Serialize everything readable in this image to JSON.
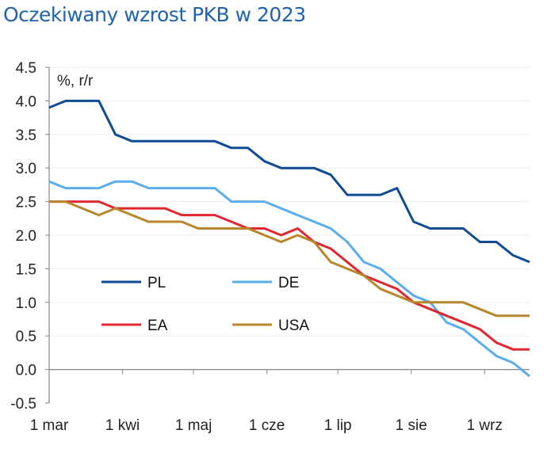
{
  "chart_data": {
    "type": "line",
    "title": "Oczekiwany wzrost PKB w 2023",
    "ylabel": "%, r/r",
    "xlabel": "",
    "ylim": [
      -0.5,
      4.5
    ],
    "yticks": [
      "4.5",
      "4.0",
      "3.5",
      "3.0",
      "2.5",
      "2.0",
      "1.5",
      "1.0",
      "0.5",
      "0.0",
      "-0.5"
    ],
    "xticks": [
      {
        "label": "1 mar",
        "date": "2023-03-01"
      },
      {
        "label": "1 kwi",
        "date": "2023-04-01"
      },
      {
        "label": "1 maj",
        "date": "2023-05-01"
      },
      {
        "label": "1 cze",
        "date": "2023-06-01"
      },
      {
        "label": "1 lip",
        "date": "2023-07-01"
      },
      {
        "label": "1 sie",
        "date": "2023-08-01"
      },
      {
        "label": "1 wrz",
        "date": "2023-09-01"
      }
    ],
    "xlim": [
      "2023-03-01",
      "2023-09-20"
    ],
    "x_start": "2023-03-01",
    "x_step_days": 7,
    "grid": true,
    "legend_placement": "center-left, inside plot",
    "series": [
      {
        "name": "PL",
        "color": "#0f4c94",
        "values": [
          3.9,
          4.0,
          4.0,
          4.0,
          3.5,
          3.4,
          3.4,
          3.4,
          3.4,
          3.4,
          3.4,
          3.3,
          3.3,
          3.1,
          3.0,
          3.0,
          3.0,
          2.9,
          2.6,
          2.6,
          2.6,
          2.7,
          2.2,
          2.1,
          2.1,
          2.1,
          1.9,
          1.9,
          1.7,
          1.6
        ]
      },
      {
        "name": "DE",
        "color": "#5aaeee",
        "values": [
          2.8,
          2.7,
          2.7,
          2.7,
          2.8,
          2.8,
          2.7,
          2.7,
          2.7,
          2.7,
          2.7,
          2.5,
          2.5,
          2.5,
          2.4,
          2.3,
          2.2,
          2.1,
          1.9,
          1.6,
          1.5,
          1.3,
          1.1,
          1.0,
          0.7,
          0.6,
          0.4,
          0.2,
          0.1,
          -0.1
        ]
      },
      {
        "name": "EA",
        "color": "#e0262f",
        "values": [
          2.5,
          2.5,
          2.5,
          2.5,
          2.4,
          2.4,
          2.4,
          2.4,
          2.3,
          2.3,
          2.3,
          2.2,
          2.1,
          2.1,
          2.0,
          2.1,
          1.9,
          1.8,
          1.6,
          1.4,
          1.3,
          1.2,
          1.0,
          0.9,
          0.8,
          0.7,
          0.6,
          0.4,
          0.3,
          0.3
        ]
      },
      {
        "name": "USA",
        "color": "#b8862b",
        "values": [
          2.5,
          2.5,
          2.4,
          2.3,
          2.4,
          2.3,
          2.2,
          2.2,
          2.2,
          2.1,
          2.1,
          2.1,
          2.1,
          2.0,
          1.9,
          2.0,
          1.9,
          1.6,
          1.5,
          1.4,
          1.2,
          1.1,
          1.0,
          1.0,
          1.0,
          1.0,
          0.9,
          0.8,
          0.8,
          0.8
        ]
      }
    ]
  }
}
